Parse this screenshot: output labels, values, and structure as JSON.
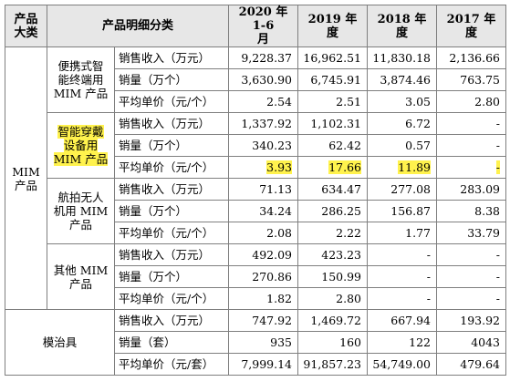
{
  "header": {
    "product_category": "产品\n大类",
    "detail_category": "产品明细分类",
    "periods": [
      "2020 年 1-6\n月",
      "2019 年\n度",
      "2018 年\n度",
      "2017 年\n度"
    ]
  },
  "mim_label": "MIM\n产品",
  "groups": [
    {
      "name": "便携式智\n能终端用\nMIM 产品",
      "rows": [
        {
          "metric": "销售收入（万元）",
          "values": [
            "9,228.37",
            "16,962.51",
            "11,830.18",
            "2,136.66"
          ]
        },
        {
          "metric": "销量（万个）",
          "values": [
            "3,630.90",
            "6,745.91",
            "3,874.46",
            "763.75"
          ]
        },
        {
          "metric": "平均单价（元/个）",
          "values": [
            "2.54",
            "2.51",
            "3.05",
            "2.80"
          ]
        }
      ]
    },
    {
      "name": "智能穿戴\n设备用\nMIM 产品",
      "rows": [
        {
          "metric": "销售收入（万元）",
          "values": [
            "1,337.92",
            "1,102.31",
            "6.72",
            "-"
          ]
        },
        {
          "metric": "销量（万个）",
          "values": [
            "340.23",
            "62.42",
            "0.57",
            "-"
          ]
        },
        {
          "metric": "平均单价（元/个）",
          "values": [
            "3.93",
            "17.66",
            "11.89",
            "-"
          ]
        }
      ]
    },
    {
      "name": "航拍无人\n机用 MIM\n产品",
      "rows": [
        {
          "metric": "销售收入（万元）",
          "values": [
            "71.13",
            "634.47",
            "277.08",
            "283.09"
          ]
        },
        {
          "metric": "销量（万个）",
          "values": [
            "34.24",
            "286.25",
            "156.87",
            "8.38"
          ]
        },
        {
          "metric": "平均单价（元/个）",
          "values": [
            "2.08",
            "2.22",
            "1.77",
            "33.79"
          ]
        }
      ]
    },
    {
      "name": "其他 MIM\n产品",
      "rows": [
        {
          "metric": "销售收入（万元）",
          "values": [
            "492.09",
            "423.23",
            "-",
            "-"
          ]
        },
        {
          "metric": "销量（万个）",
          "values": [
            "270.86",
            "150.99",
            "-",
            "-"
          ]
        },
        {
          "metric": "平均单价（元/个）",
          "values": [
            "1.82",
            "2.80",
            "-",
            "-"
          ]
        }
      ]
    }
  ],
  "mold": {
    "name": "模治具",
    "rows": [
      {
        "metric": "销售收入（万元）",
        "values": [
          "747.92",
          "1,469.72",
          "667.94",
          "193.92"
        ]
      },
      {
        "metric": "销量（套）",
        "values": [
          "935",
          "160",
          "122",
          "4043"
        ]
      },
      {
        "metric": "平均单价（元/套）",
        "values": [
          "7,999.14",
          "91,857.23",
          "54,749.00",
          "479.64"
        ]
      }
    ]
  },
  "colors": {
    "highlight": "#fff24d",
    "header_bg": "#e7e7e7",
    "border": "#7f7f7f"
  }
}
